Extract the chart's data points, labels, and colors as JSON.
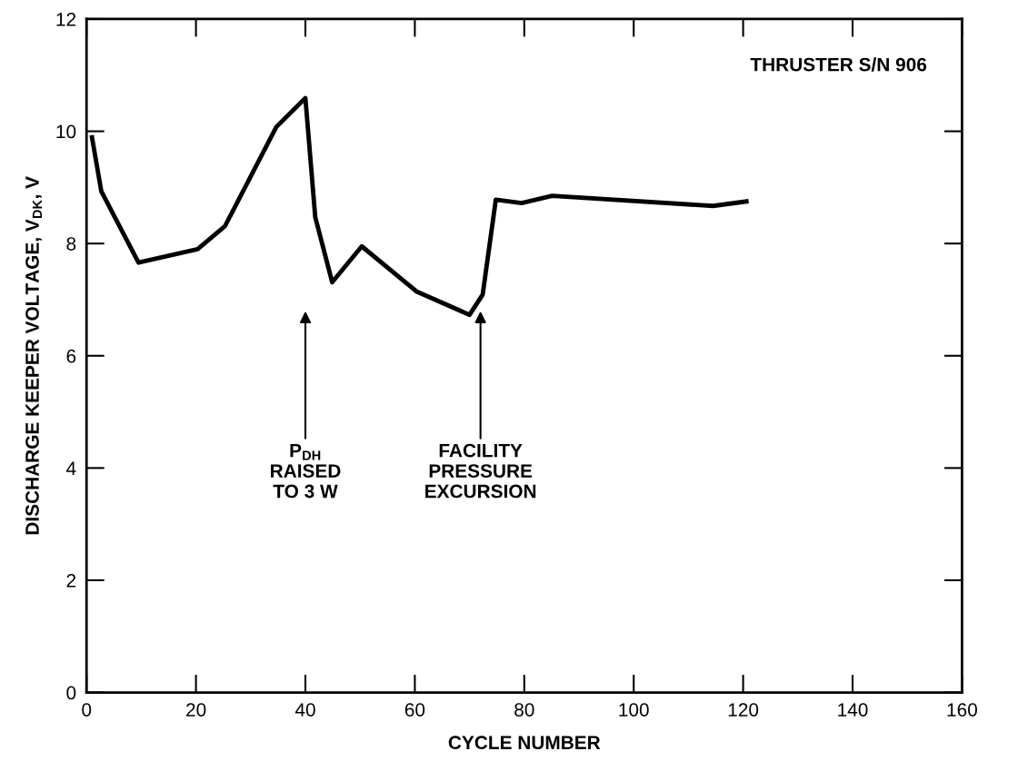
{
  "chart_data": {
    "type": "line",
    "xlabel": "CYCLE NUMBER",
    "ylabel": "DISCHARGE KEEPER VOLTAGE, V$_{DK}$, V",
    "x": [
      1,
      2.7,
      9.5,
      20.3,
      25.3,
      34.7,
      40,
      41.8,
      44.9,
      50.3,
      60.4,
      70,
      72.4,
      74.8,
      79.5,
      85.1,
      114.5,
      120.6
    ],
    "series": [
      {
        "color": "#000000",
        "values": [
          9.89,
          8.93,
          7.66,
          7.9,
          8.31,
          10.08,
          10.59,
          8.47,
          7.31,
          7.95,
          7.14,
          6.73,
          7.09,
          8.78,
          8.72,
          8.85,
          8.67,
          8.75
        ]
      }
    ],
    "xlim": [
      0,
      160
    ],
    "ylim": [
      0,
      12
    ],
    "xticks": [
      0,
      20,
      40,
      60,
      80,
      100,
      120,
      140,
      160
    ],
    "yticks": [
      0,
      2,
      4,
      6,
      8,
      10,
      12
    ],
    "grid": false,
    "legend": false,
    "marker": "none",
    "line_style": "solid",
    "annotations": [
      "P$_{DH}$\nRAISED\nTO 3 W",
      "FACILITY\nPRESSURE\nEXCURSION",
      "THRUSTER S/N 906"
    ]
  }
}
